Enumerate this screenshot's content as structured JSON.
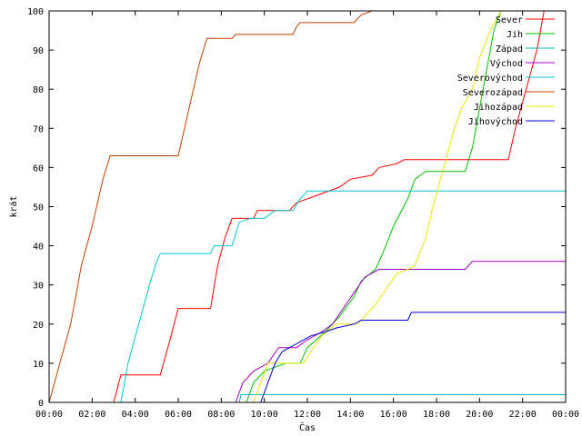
{
  "chart_data": {
    "type": "line",
    "xlabel": "Čas",
    "ylabel": "krát",
    "xlim": [
      "00:00",
      "24:00"
    ],
    "ylim": [
      0,
      100
    ],
    "xticks": [
      "00:00",
      "02:00",
      "04:00",
      "06:00",
      "08:00",
      "10:00",
      "12:00",
      "14:00",
      "16:00",
      "18:00",
      "20:00",
      "22:00",
      "00:00"
    ],
    "yticks": [
      "0",
      "10",
      "20",
      "30",
      "40",
      "50",
      "60",
      "70",
      "80",
      "90",
      "100"
    ],
    "legend_position": "top-right",
    "grid": false,
    "series": [
      {
        "name": "Sever",
        "color": "#ff0000",
        "points": [
          [
            "03:00",
            0
          ],
          [
            "03:20",
            7
          ],
          [
            "05:10",
            7
          ],
          [
            "05:40",
            17
          ],
          [
            "06:00",
            24
          ],
          [
            "07:30",
            24
          ],
          [
            "07:50",
            35
          ],
          [
            "08:10",
            42
          ],
          [
            "08:30",
            47
          ],
          [
            "09:30",
            47
          ],
          [
            "09:40",
            49
          ],
          [
            "11:10",
            49
          ],
          [
            "11:30",
            51
          ],
          [
            "12:30",
            53
          ],
          [
            "13:30",
            55
          ],
          [
            "14:00",
            57
          ],
          [
            "15:00",
            58
          ],
          [
            "15:20",
            60
          ],
          [
            "16:10",
            61
          ],
          [
            "16:30",
            62
          ],
          [
            "21:20",
            62
          ],
          [
            "21:40",
            70
          ],
          [
            "22:10",
            80
          ],
          [
            "22:40",
            90
          ],
          [
            "23:00",
            100
          ]
        ]
      },
      {
        "name": "Jih",
        "color": "#00c000",
        "points": [
          [
            "09:10",
            0
          ],
          [
            "09:30",
            5
          ],
          [
            "10:00",
            8
          ],
          [
            "11:00",
            10
          ],
          [
            "11:40",
            10
          ],
          [
            "12:00",
            14
          ],
          [
            "12:50",
            18
          ],
          [
            "13:30",
            22
          ],
          [
            "14:10",
            27
          ],
          [
            "14:30",
            31
          ],
          [
            "15:10",
            34
          ],
          [
            "15:30",
            38
          ],
          [
            "16:00",
            45
          ],
          [
            "16:40",
            52
          ],
          [
            "17:00",
            57
          ],
          [
            "17:30",
            59
          ],
          [
            "19:20",
            59
          ],
          [
            "19:40",
            65
          ],
          [
            "20:00",
            75
          ],
          [
            "20:20",
            85
          ],
          [
            "20:40",
            95
          ],
          [
            "21:00",
            100
          ]
        ]
      },
      {
        "name": "Západ",
        "color": "#00b0c0",
        "points": [
          [
            "08:50",
            0
          ],
          [
            "08:55",
            2
          ],
          [
            "24:00",
            2
          ]
        ]
      },
      {
        "name": "Východ",
        "color": "#a000c0",
        "points": [
          [
            "08:40",
            0
          ],
          [
            "09:00",
            5
          ],
          [
            "09:30",
            8
          ],
          [
            "10:10",
            10
          ],
          [
            "10:40",
            14
          ],
          [
            "11:30",
            14
          ],
          [
            "12:00",
            16
          ],
          [
            "12:40",
            18
          ],
          [
            "13:10",
            20
          ],
          [
            "13:40",
            24
          ],
          [
            "14:10",
            28
          ],
          [
            "14:40",
            32
          ],
          [
            "15:00",
            33
          ],
          [
            "15:20",
            34
          ],
          [
            "19:20",
            34
          ],
          [
            "19:40",
            36
          ],
          [
            "24:00",
            36
          ]
        ]
      },
      {
        "name": "Severovýchod",
        "color": "#00c8d0",
        "points": [
          [
            "03:20",
            0
          ],
          [
            "03:40",
            10
          ],
          [
            "04:10",
            20
          ],
          [
            "04:40",
            30
          ],
          [
            "05:00",
            36
          ],
          [
            "05:10",
            38
          ],
          [
            "07:30",
            38
          ],
          [
            "07:40",
            40
          ],
          [
            "08:30",
            40
          ],
          [
            "08:50",
            46
          ],
          [
            "09:20",
            47
          ],
          [
            "10:00",
            47
          ],
          [
            "10:30",
            49
          ],
          [
            "11:20",
            49
          ],
          [
            "11:40",
            52
          ],
          [
            "12:00",
            54
          ],
          [
            "24:00",
            54
          ]
        ]
      },
      {
        "name": "Severozápad",
        "color": "#c04000",
        "points": [
          [
            "00:00",
            0
          ],
          [
            "00:30",
            10
          ],
          [
            "01:00",
            20
          ],
          [
            "01:30",
            35
          ],
          [
            "02:00",
            45
          ],
          [
            "02:30",
            57
          ],
          [
            "02:50",
            63
          ],
          [
            "06:00",
            63
          ],
          [
            "06:30",
            75
          ],
          [
            "07:00",
            87
          ],
          [
            "07:20",
            93
          ],
          [
            "08:30",
            93
          ],
          [
            "08:40",
            94
          ],
          [
            "11:20",
            94
          ],
          [
            "11:30",
            96
          ],
          [
            "11:40",
            97
          ],
          [
            "14:10",
            97
          ],
          [
            "14:30",
            99
          ],
          [
            "15:00",
            100
          ]
        ]
      },
      {
        "name": "Jihozápad",
        "color": "#e8e800",
        "points": [
          [
            "09:30",
            0
          ],
          [
            "09:50",
            5
          ],
          [
            "10:10",
            10
          ],
          [
            "11:50",
            10
          ],
          [
            "12:10",
            13
          ],
          [
            "12:40",
            17
          ],
          [
            "13:20",
            20
          ],
          [
            "14:20",
            20
          ],
          [
            "14:40",
            22
          ],
          [
            "15:10",
            25
          ],
          [
            "15:40",
            29
          ],
          [
            "16:10",
            33
          ],
          [
            "16:40",
            34
          ],
          [
            "17:00",
            35
          ],
          [
            "17:30",
            42
          ],
          [
            "17:50",
            50
          ],
          [
            "18:20",
            60
          ],
          [
            "18:50",
            70
          ],
          [
            "19:10",
            75
          ],
          [
            "19:40",
            80
          ],
          [
            "20:00",
            88
          ],
          [
            "20:30",
            95
          ],
          [
            "21:00",
            100
          ]
        ]
      },
      {
        "name": "Jihovýchod",
        "color": "#0000d0",
        "points": [
          [
            "09:50",
            0
          ],
          [
            "10:10",
            5
          ],
          [
            "10:30",
            10
          ],
          [
            "10:50",
            13
          ],
          [
            "11:30",
            15
          ],
          [
            "12:10",
            17
          ],
          [
            "12:50",
            18
          ],
          [
            "13:20",
            19
          ],
          [
            "14:10",
            20
          ],
          [
            "14:30",
            21
          ],
          [
            "16:40",
            21
          ],
          [
            "16:50",
            23
          ],
          [
            "24:00",
            23
          ]
        ]
      }
    ]
  }
}
